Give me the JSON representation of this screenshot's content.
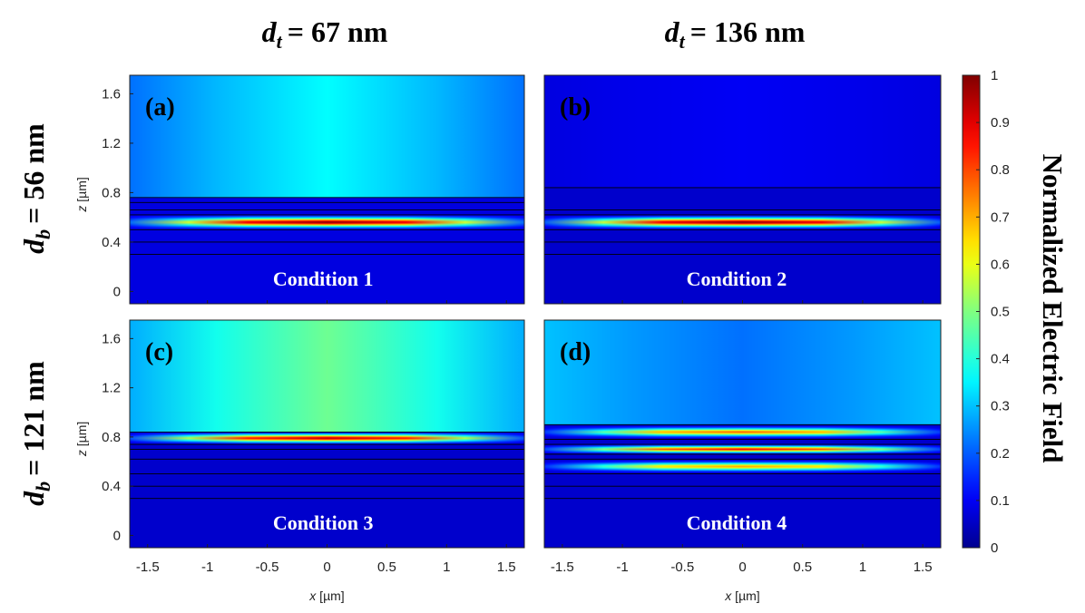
{
  "col_headers": [
    {
      "var": "d",
      "sub": "t",
      "value": "= 67 nm"
    },
    {
      "var": "d",
      "sub": "t",
      "value": "= 136 nm"
    }
  ],
  "row_headers": [
    {
      "var": "d",
      "sub": "b",
      "value": "= 56 nm"
    },
    {
      "var": "d",
      "sub": "b",
      "value": "= 121 nm"
    }
  ],
  "colors": {
    "jet_stops": [
      "#00008f",
      "#0000ff",
      "#00ffff",
      "#80ff80",
      "#ffff00",
      "#ff0000",
      "#800000"
    ],
    "layer_line": "#000000",
    "condition_text": "#ffffff"
  },
  "chart_data": {
    "type": "heatmap",
    "colormap": "jet",
    "xlabel_var": "x",
    "xlabel_unit": "[µm]",
    "ylabel_var": "z",
    "ylabel_unit": "[µm]",
    "xlim": [
      -1.65,
      1.65
    ],
    "ylim": [
      -0.1,
      1.75
    ],
    "x_ticks": [
      -1.5,
      -1,
      -0.5,
      0,
      0.5,
      1,
      1.5
    ],
    "x_tick_labels": [
      "-1.5",
      "-1",
      "-0.5",
      "0",
      "0.5",
      "1",
      "1.5"
    ],
    "y_ticks": [
      0,
      0.4,
      0.8,
      1.2,
      1.6
    ],
    "y_tick_labels": [
      "0",
      "0.4",
      "0.8",
      "1.2",
      "1.6"
    ],
    "colorbar": {
      "label": "Normalized Electric Field",
      "range": [
        0,
        1
      ],
      "ticks": [
        0,
        0.1,
        0.2,
        0.3,
        0.4,
        0.5,
        0.6,
        0.7,
        0.8,
        0.9,
        1
      ],
      "tick_labels": [
        "0",
        "0.1",
        "0.2",
        "0.3",
        "0.4",
        "0.5",
        "0.6",
        "0.7",
        "0.8",
        "0.9",
        "1"
      ]
    },
    "panels": [
      {
        "id": "a",
        "label": "(a)",
        "condition": "Condition 1",
        "substrate_value": 0.08,
        "top_field": {
          "center": 0.36,
          "edge": 0.22
        },
        "mode_peaks": [
          {
            "z": 0.56,
            "peak": 1.0,
            "width": 0.025
          }
        ],
        "layer_boundaries_z": [
          0.3,
          0.4,
          0.5,
          0.62,
          0.66,
          0.72,
          0.76
        ]
      },
      {
        "id": "b",
        "label": "(b)",
        "condition": "Condition 2",
        "substrate_value": 0.06,
        "top_field": {
          "center": 0.1,
          "edge": 0.08
        },
        "mode_peaks": [
          {
            "z": 0.56,
            "peak": 1.0,
            "width": 0.025
          }
        ],
        "layer_boundaries_z": [
          0.3,
          0.4,
          0.5,
          0.62,
          0.66,
          0.84
        ]
      },
      {
        "id": "c",
        "label": "(c)",
        "condition": "Condition 3",
        "substrate_value": 0.06,
        "top_field": {
          "center": 0.48,
          "edge": 0.28
        },
        "mode_peaks": [
          {
            "z": 0.79,
            "peak": 0.95,
            "width": 0.022
          }
        ],
        "layer_boundaries_z": [
          0.3,
          0.4,
          0.5,
          0.62,
          0.7,
          0.74,
          0.84
        ]
      },
      {
        "id": "d",
        "label": "(d)",
        "condition": "Condition 4",
        "substrate_value": 0.06,
        "top_field": {
          "center": 0.22,
          "edge": 0.3
        },
        "mode_peaks": [
          {
            "z": 0.56,
            "peak": 0.72,
            "width": 0.022
          },
          {
            "z": 0.7,
            "peak": 0.88,
            "width": 0.018
          },
          {
            "z": 0.84,
            "peak": 0.78,
            "width": 0.022
          }
        ],
        "layer_boundaries_z": [
          0.3,
          0.4,
          0.5,
          0.62,
          0.66,
          0.74,
          0.78,
          0.9
        ]
      }
    ]
  }
}
